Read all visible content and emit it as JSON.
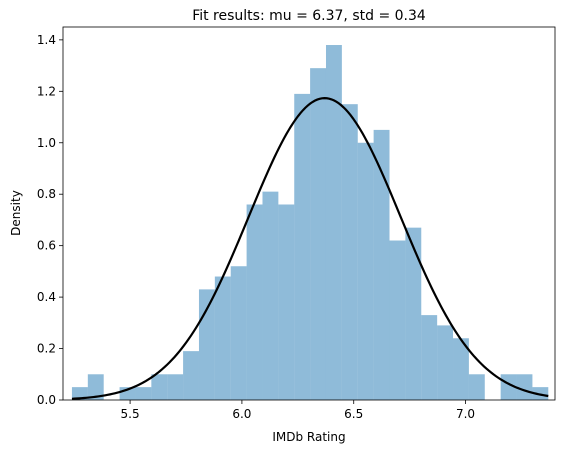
{
  "chart_data": {
    "type": "bar",
    "title": "Fit results: mu = 6.37, std = 0.34",
    "xlabel": "IMDb Rating",
    "ylabel": "Density",
    "xlim": [
      5.2,
      7.4
    ],
    "ylim": [
      0,
      1.45
    ],
    "grid": false,
    "xticks": [
      5.5,
      6.0,
      6.5,
      7.0
    ],
    "xtick_labels": [
      "5.5",
      "6.0",
      "6.5",
      "7.0"
    ],
    "yticks": [
      0.0,
      0.2,
      0.4,
      0.6,
      0.8,
      1.0,
      1.2,
      1.4
    ],
    "ytick_labels": [
      "0.0",
      "0.2",
      "0.4",
      "0.6",
      "0.8",
      "1.0",
      "1.2",
      "1.4"
    ],
    "histogram": {
      "color": "#1f77b4",
      "opacity": 0.5,
      "bin_edges": [
        5.24,
        5.311,
        5.382,
        5.453,
        5.524,
        5.595,
        5.666,
        5.737,
        5.808,
        5.879,
        5.95,
        6.021,
        6.092,
        6.163,
        6.234,
        6.305,
        6.376,
        6.447,
        6.518,
        6.589,
        6.66,
        6.731,
        6.802,
        6.873,
        6.944,
        7.015,
        7.086,
        7.157,
        7.228,
        7.299,
        7.37
      ],
      "density": [
        0.05,
        0.1,
        0.0,
        0.05,
        0.05,
        0.1,
        0.1,
        0.19,
        0.43,
        0.48,
        0.52,
        0.76,
        0.81,
        0.76,
        1.19,
        1.29,
        1.38,
        1.15,
        1.0,
        1.05,
        0.62,
        0.67,
        0.33,
        0.29,
        0.24,
        0.1,
        0.0,
        0.1,
        0.1,
        0.05
      ]
    },
    "fit_curve": {
      "type": "line",
      "distribution": "normal",
      "mu": 6.37,
      "std": 0.34,
      "color": "#000000"
    }
  }
}
